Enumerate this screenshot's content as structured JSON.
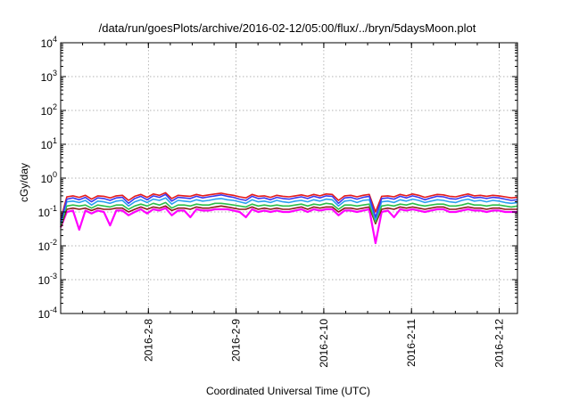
{
  "chart_data": {
    "type": "line",
    "title": "/data/run/goesPlots/archive/2016-02-12/05:00/flux/../bryn/5daysMoon.plot",
    "xlabel": "Coordinated Universal Time (UTC)",
    "ylabel": "cGy/day",
    "yscale": "log",
    "ylim": [
      0.0001,
      10000
    ],
    "y_ticks": [
      {
        "value": 0.0001,
        "base": "10",
        "exp": "-4"
      },
      {
        "value": 0.001,
        "base": "10",
        "exp": "-3"
      },
      {
        "value": 0.01,
        "base": "10",
        "exp": "-2"
      },
      {
        "value": 0.1,
        "base": "10",
        "exp": "-1"
      },
      {
        "value": 1,
        "base": "10",
        "exp": "0"
      },
      {
        "value": 10,
        "base": "10",
        "exp": "1"
      },
      {
        "value": 100,
        "base": "10",
        "exp": "2"
      },
      {
        "value": 1000,
        "base": "10",
        "exp": "3"
      },
      {
        "value": 10000,
        "base": "10",
        "exp": "4"
      }
    ],
    "xlim": [
      "2016-02-07T00:00",
      "2016-02-12T05:00"
    ],
    "x_ticks": [
      "2016-2-8",
      "2016-2-9",
      "2016-2-10",
      "2016-2-11",
      "2016-2-12"
    ],
    "grid": true,
    "series": [
      {
        "color": "#e41a1c",
        "values": [
          0.06,
          0.28,
          0.3,
          0.27,
          0.31,
          0.24,
          0.3,
          0.29,
          0.26,
          0.3,
          0.31,
          0.22,
          0.29,
          0.33,
          0.27,
          0.34,
          0.31,
          0.37,
          0.25,
          0.31,
          0.3,
          0.29,
          0.33,
          0.3,
          0.32,
          0.34,
          0.36,
          0.33,
          0.31,
          0.28,
          0.26,
          0.33,
          0.29,
          0.3,
          0.27,
          0.31,
          0.29,
          0.28,
          0.3,
          0.32,
          0.29,
          0.33,
          0.3,
          0.34,
          0.33,
          0.22,
          0.3,
          0.31,
          0.28,
          0.31,
          0.33,
          0.1,
          0.29,
          0.3,
          0.28,
          0.33,
          0.3,
          0.34,
          0.31,
          0.27,
          0.3,
          0.33,
          0.32,
          0.29,
          0.28,
          0.31,
          0.34,
          0.3,
          0.31,
          0.29,
          0.31,
          0.3,
          0.28,
          0.26,
          0.27
        ]
      },
      {
        "color": "#3a3af0",
        "values": [
          0.05,
          0.24,
          0.26,
          0.23,
          0.27,
          0.2,
          0.26,
          0.25,
          0.22,
          0.26,
          0.27,
          0.18,
          0.25,
          0.29,
          0.23,
          0.3,
          0.27,
          0.33,
          0.21,
          0.27,
          0.26,
          0.25,
          0.29,
          0.26,
          0.28,
          0.3,
          0.32,
          0.29,
          0.27,
          0.24,
          0.22,
          0.29,
          0.25,
          0.26,
          0.23,
          0.27,
          0.25,
          0.24,
          0.26,
          0.28,
          0.25,
          0.29,
          0.26,
          0.3,
          0.29,
          0.18,
          0.26,
          0.27,
          0.24,
          0.27,
          0.29,
          0.07,
          0.25,
          0.26,
          0.24,
          0.29,
          0.26,
          0.3,
          0.27,
          0.23,
          0.26,
          0.29,
          0.28,
          0.25,
          0.24,
          0.27,
          0.3,
          0.26,
          0.27,
          0.25,
          0.27,
          0.26,
          0.24,
          0.22,
          0.23
        ]
      },
      {
        "color": "#29a0f0",
        "values": [
          0.045,
          0.2,
          0.21,
          0.19,
          0.22,
          0.16,
          0.21,
          0.2,
          0.18,
          0.21,
          0.22,
          0.15,
          0.2,
          0.23,
          0.19,
          0.24,
          0.22,
          0.26,
          0.17,
          0.22,
          0.21,
          0.2,
          0.23,
          0.21,
          0.22,
          0.24,
          0.25,
          0.23,
          0.22,
          0.2,
          0.18,
          0.23,
          0.2,
          0.21,
          0.19,
          0.22,
          0.2,
          0.19,
          0.21,
          0.22,
          0.2,
          0.23,
          0.21,
          0.24,
          0.23,
          0.15,
          0.21,
          0.22,
          0.19,
          0.22,
          0.23,
          0.06,
          0.2,
          0.21,
          0.19,
          0.23,
          0.21,
          0.24,
          0.22,
          0.19,
          0.21,
          0.23,
          0.22,
          0.2,
          0.19,
          0.22,
          0.24,
          0.21,
          0.22,
          0.2,
          0.22,
          0.21,
          0.19,
          0.18,
          0.19
        ]
      },
      {
        "color": "#2cbf4a",
        "values": [
          0.04,
          0.15,
          0.16,
          0.15,
          0.16,
          0.13,
          0.16,
          0.15,
          0.14,
          0.16,
          0.16,
          0.12,
          0.15,
          0.17,
          0.15,
          0.18,
          0.16,
          0.19,
          0.13,
          0.16,
          0.16,
          0.15,
          0.17,
          0.16,
          0.16,
          0.18,
          0.18,
          0.17,
          0.16,
          0.15,
          0.14,
          0.17,
          0.15,
          0.16,
          0.15,
          0.16,
          0.15,
          0.15,
          0.16,
          0.17,
          0.15,
          0.17,
          0.16,
          0.18,
          0.17,
          0.12,
          0.16,
          0.16,
          0.15,
          0.16,
          0.17,
          0.05,
          0.15,
          0.16,
          0.15,
          0.17,
          0.16,
          0.18,
          0.16,
          0.15,
          0.16,
          0.17,
          0.17,
          0.15,
          0.15,
          0.16,
          0.18,
          0.16,
          0.16,
          0.15,
          0.16,
          0.16,
          0.15,
          0.14,
          0.15
        ]
      },
      {
        "color": "#8b1a1a",
        "values": [
          0.035,
          0.12,
          0.13,
          0.12,
          0.13,
          0.11,
          0.13,
          0.12,
          0.12,
          0.13,
          0.13,
          0.1,
          0.12,
          0.14,
          0.12,
          0.14,
          0.13,
          0.15,
          0.11,
          0.13,
          0.13,
          0.12,
          0.14,
          0.13,
          0.13,
          0.14,
          0.15,
          0.14,
          0.13,
          0.12,
          0.12,
          0.14,
          0.12,
          0.13,
          0.12,
          0.13,
          0.12,
          0.12,
          0.13,
          0.14,
          0.12,
          0.14,
          0.13,
          0.14,
          0.14,
          0.1,
          0.13,
          0.13,
          0.12,
          0.13,
          0.14,
          0.045,
          0.12,
          0.13,
          0.12,
          0.14,
          0.13,
          0.14,
          0.13,
          0.12,
          0.13,
          0.14,
          0.14,
          0.12,
          0.12,
          0.13,
          0.14,
          0.13,
          0.13,
          0.12,
          0.13,
          0.13,
          0.12,
          0.12,
          0.12
        ]
      },
      {
        "color": "#ff00ff",
        "values": [
          0.035,
          0.1,
          0.11,
          0.03,
          0.11,
          0.09,
          0.11,
          0.1,
          0.04,
          0.11,
          0.11,
          0.08,
          0.1,
          0.12,
          0.09,
          0.12,
          0.11,
          0.13,
          0.08,
          0.11,
          0.11,
          0.07,
          0.12,
          0.11,
          0.11,
          0.12,
          0.12,
          0.12,
          0.11,
          0.1,
          0.07,
          0.12,
          0.1,
          0.11,
          0.1,
          0.11,
          0.1,
          0.1,
          0.11,
          0.12,
          0.1,
          0.12,
          0.11,
          0.12,
          0.12,
          0.08,
          0.11,
          0.11,
          0.1,
          0.11,
          0.12,
          0.012,
          0.1,
          0.11,
          0.07,
          0.12,
          0.11,
          0.12,
          0.11,
          0.1,
          0.11,
          0.12,
          0.12,
          0.1,
          0.1,
          0.11,
          0.12,
          0.11,
          0.11,
          0.1,
          0.11,
          0.11,
          0.1,
          0.1,
          0.1
        ]
      }
    ]
  }
}
